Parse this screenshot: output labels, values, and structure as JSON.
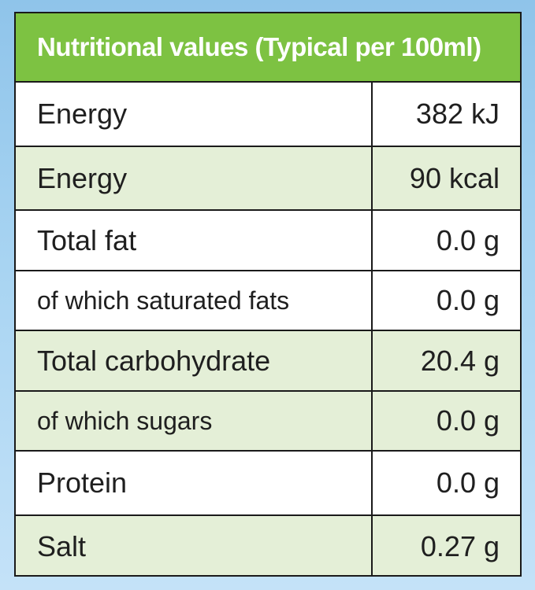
{
  "table": {
    "title": "Nutritional values (Typical per 100ml)",
    "rows": [
      {
        "label": "Energy",
        "value": "382 kJ"
      },
      {
        "label": "Energy",
        "value": "90 kcal"
      },
      {
        "label": "Total fat",
        "value": "0.0 g"
      },
      {
        "label": "of which saturated fats",
        "value": "0.0 g"
      },
      {
        "label": "Total carbohydrate",
        "value": "20.4 g"
      },
      {
        "label": "of which sugars",
        "value": "0.0 g"
      },
      {
        "label": "Protein",
        "value": "0.0 g"
      },
      {
        "label": "Salt",
        "value": "0.27 g"
      }
    ]
  },
  "colors": {
    "header_green": "#7dc242",
    "shaded_row": "#e4efd7",
    "border": "#1a1a1a",
    "background_blue": "#a8d4f2"
  }
}
